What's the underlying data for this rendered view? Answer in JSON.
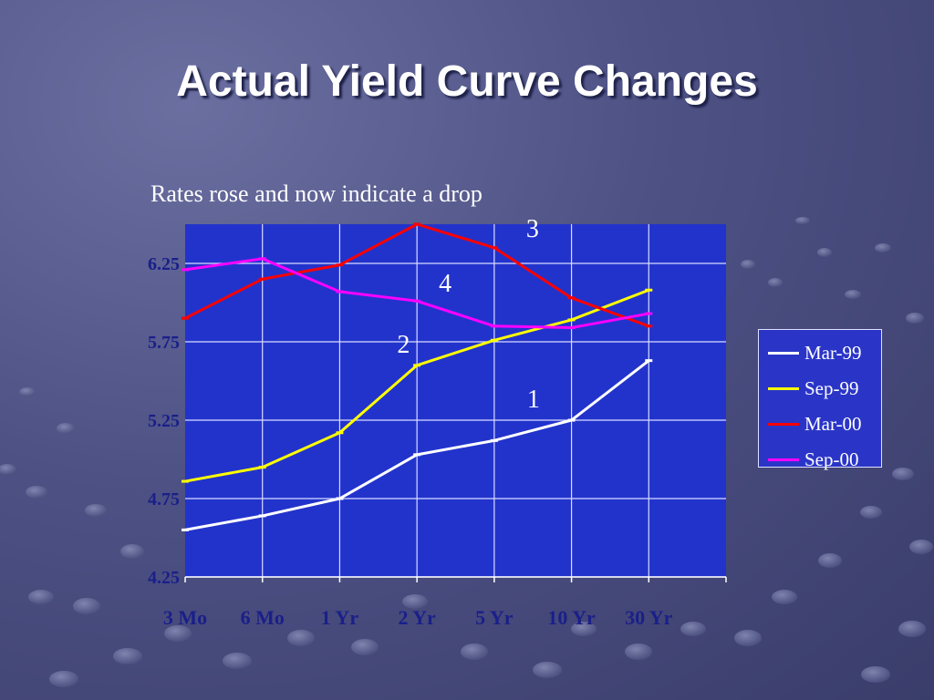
{
  "slide": {
    "title": "Actual Yield Curve Changes",
    "subtitle": "Rates rose and now indicate a drop"
  },
  "colors": {
    "background": "#4d5184",
    "plot_area": "#2233cc",
    "grid": "#d8dcff",
    "axis_text": "#1a1f8a"
  },
  "chart_data": {
    "type": "line",
    "categories": [
      "3 Mo",
      "6 Mo",
      "1 Yr",
      "2 Yr",
      "5 Yr",
      "10 Yr",
      "30 Yr"
    ],
    "series": [
      {
        "name": "Mar-99",
        "color": "#ffffff",
        "values": [
          4.55,
          4.64,
          4.75,
          5.03,
          5.12,
          5.25,
          5.63
        ]
      },
      {
        "name": "Sep-99",
        "color": "#ffff00",
        "values": [
          4.86,
          4.95,
          5.17,
          5.6,
          5.76,
          5.89,
          6.08
        ]
      },
      {
        "name": "Mar-00",
        "color": "#ff0000",
        "values": [
          5.9,
          6.15,
          6.24,
          6.5,
          6.35,
          6.03,
          5.85
        ]
      },
      {
        "name": "Sep-00",
        "color": "#ff00ff",
        "values": [
          6.21,
          6.28,
          6.07,
          6.01,
          5.85,
          5.84,
          5.93
        ]
      }
    ],
    "yticks": [
      "6.25",
      "5.75",
      "5.25",
      "4.75",
      "4.25"
    ],
    "ylim": [
      4.25,
      6.5
    ],
    "grid": true,
    "legend_position": "right",
    "annotations": [
      {
        "text": "3",
        "x": "5 Yr",
        "y": 6.42
      },
      {
        "text": "4",
        "x": "2 Yr",
        "y": 6.07
      },
      {
        "text": "2",
        "x": "1 Yr",
        "y": 5.68
      },
      {
        "text": "1",
        "x": "5 Yr",
        "y": 5.33
      }
    ]
  }
}
